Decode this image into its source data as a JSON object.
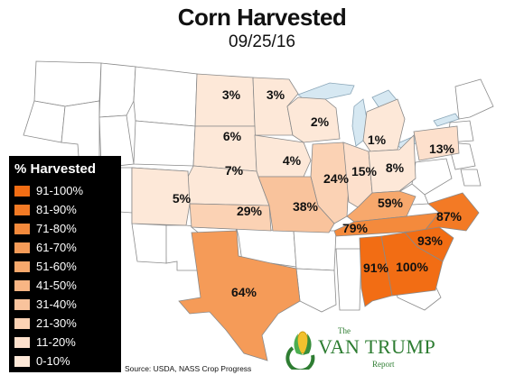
{
  "header": {
    "title": "Corn Harvested",
    "date": "09/25/16"
  },
  "map": {
    "states": [
      {
        "state": "North Dakota",
        "value": "3%",
        "color": "#fde8d8"
      },
      {
        "state": "Minnesota",
        "value": "3%",
        "color": "#fde8d8"
      },
      {
        "state": "South Dakota",
        "value": "6%",
        "color": "#fde8d8"
      },
      {
        "state": "Wisconsin",
        "value": "2%",
        "color": "#fde8d8"
      },
      {
        "state": "Michigan",
        "value": "1%",
        "color": "#fde8d8"
      },
      {
        "state": "Iowa",
        "value": "4%",
        "color": "#fde8d8"
      },
      {
        "state": "Nebraska",
        "value": "7%",
        "color": "#fde8d8"
      },
      {
        "state": "Pennsylvania",
        "value": "13%",
        "color": "#fde0cc"
      },
      {
        "state": "Illinois",
        "value": "24%",
        "color": "#fbd2b4"
      },
      {
        "state": "Indiana",
        "value": "15%",
        "color": "#fde0cc"
      },
      {
        "state": "Ohio",
        "value": "8%",
        "color": "#fde8d8"
      },
      {
        "state": "Colorado",
        "value": "5%",
        "color": "#fde8d8"
      },
      {
        "state": "Kansas",
        "value": "29%",
        "color": "#fbd2b4"
      },
      {
        "state": "Missouri",
        "value": "38%",
        "color": "#f9c39c"
      },
      {
        "state": "Kentucky",
        "value": "59%",
        "color": "#f7a86c"
      },
      {
        "state": "Tennessee",
        "value": "79%",
        "color": "#f48a3c"
      },
      {
        "state": "North Carolina",
        "value": "87%",
        "color": "#f37a25"
      },
      {
        "state": "South Carolina",
        "value": "93%",
        "color": "#f26d14"
      },
      {
        "state": "Georgia",
        "value": "100%",
        "color": "#f26d14"
      },
      {
        "state": "Alabama",
        "value": "91%",
        "color": "#f26d14"
      },
      {
        "state": "Texas",
        "value": "64%",
        "color": "#f59b58"
      }
    ]
  },
  "legend": {
    "title": "% Harvested",
    "items": [
      {
        "label": "91-100%",
        "color": "#f26d14"
      },
      {
        "label": "81-90%",
        "color": "#f37a25"
      },
      {
        "label": "71-80%",
        "color": "#f48a3c"
      },
      {
        "label": "61-70%",
        "color": "#f59b58"
      },
      {
        "label": "51-60%",
        "color": "#f7a86c"
      },
      {
        "label": "41-50%",
        "color": "#f8b584"
      },
      {
        "label": "31-40%",
        "color": "#f9c39c"
      },
      {
        "label": "21-30%",
        "color": "#fbd2b4"
      },
      {
        "label": "11-20%",
        "color": "#fde0cc"
      },
      {
        "label": "0-10%",
        "color": "#fde8d8"
      }
    ]
  },
  "footer": {
    "source": "Source: USDA, NASS Crop Progress",
    "logo_the": "The",
    "logo_name": "VAN TRUMP",
    "logo_report": "Report"
  }
}
